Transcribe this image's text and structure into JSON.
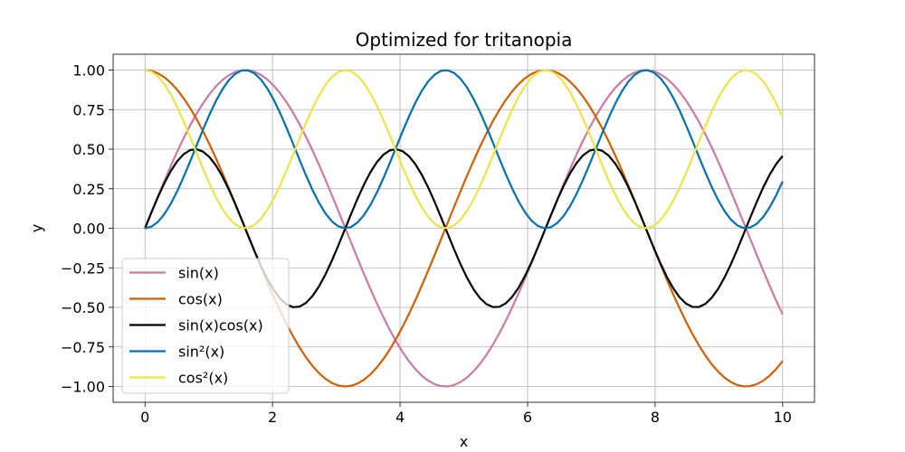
{
  "chart_data": {
    "type": "line",
    "title": "Optimized for tritanopia",
    "xlabel": "x",
    "ylabel": "y",
    "xlim": [
      -0.5,
      10.5
    ],
    "ylim": [
      -1.1,
      1.1
    ],
    "x_ticks": [
      0,
      2,
      4,
      6,
      8,
      10
    ],
    "x_tick_labels": [
      "0",
      "2",
      "4",
      "6",
      "8",
      "10"
    ],
    "y_ticks": [
      -1.0,
      -0.75,
      -0.5,
      -0.25,
      0.0,
      0.25,
      0.5,
      0.75,
      1.0
    ],
    "y_tick_labels": [
      "−1.00",
      "−0.75",
      "−0.50",
      "−0.25",
      "0.00",
      "0.25",
      "0.50",
      "0.75",
      "1.00"
    ],
    "grid": true,
    "legend_position": "lower-left",
    "x_range": [
      0,
      10
    ],
    "sample_count": 100,
    "series": [
      {
        "name": "sin(x)",
        "expr": "sin",
        "color": "#cc79a7"
      },
      {
        "name": "cos(x)",
        "expr": "cos",
        "color": "#d55e00"
      },
      {
        "name": "sin(x)cos(x)",
        "expr": "sincos",
        "color": "#000000"
      },
      {
        "name": "sin²(x)",
        "expr": "sin2",
        "color": "#0072b2"
      },
      {
        "name": "cos²(x)",
        "expr": "cos2",
        "color": "#f0e442"
      }
    ]
  }
}
